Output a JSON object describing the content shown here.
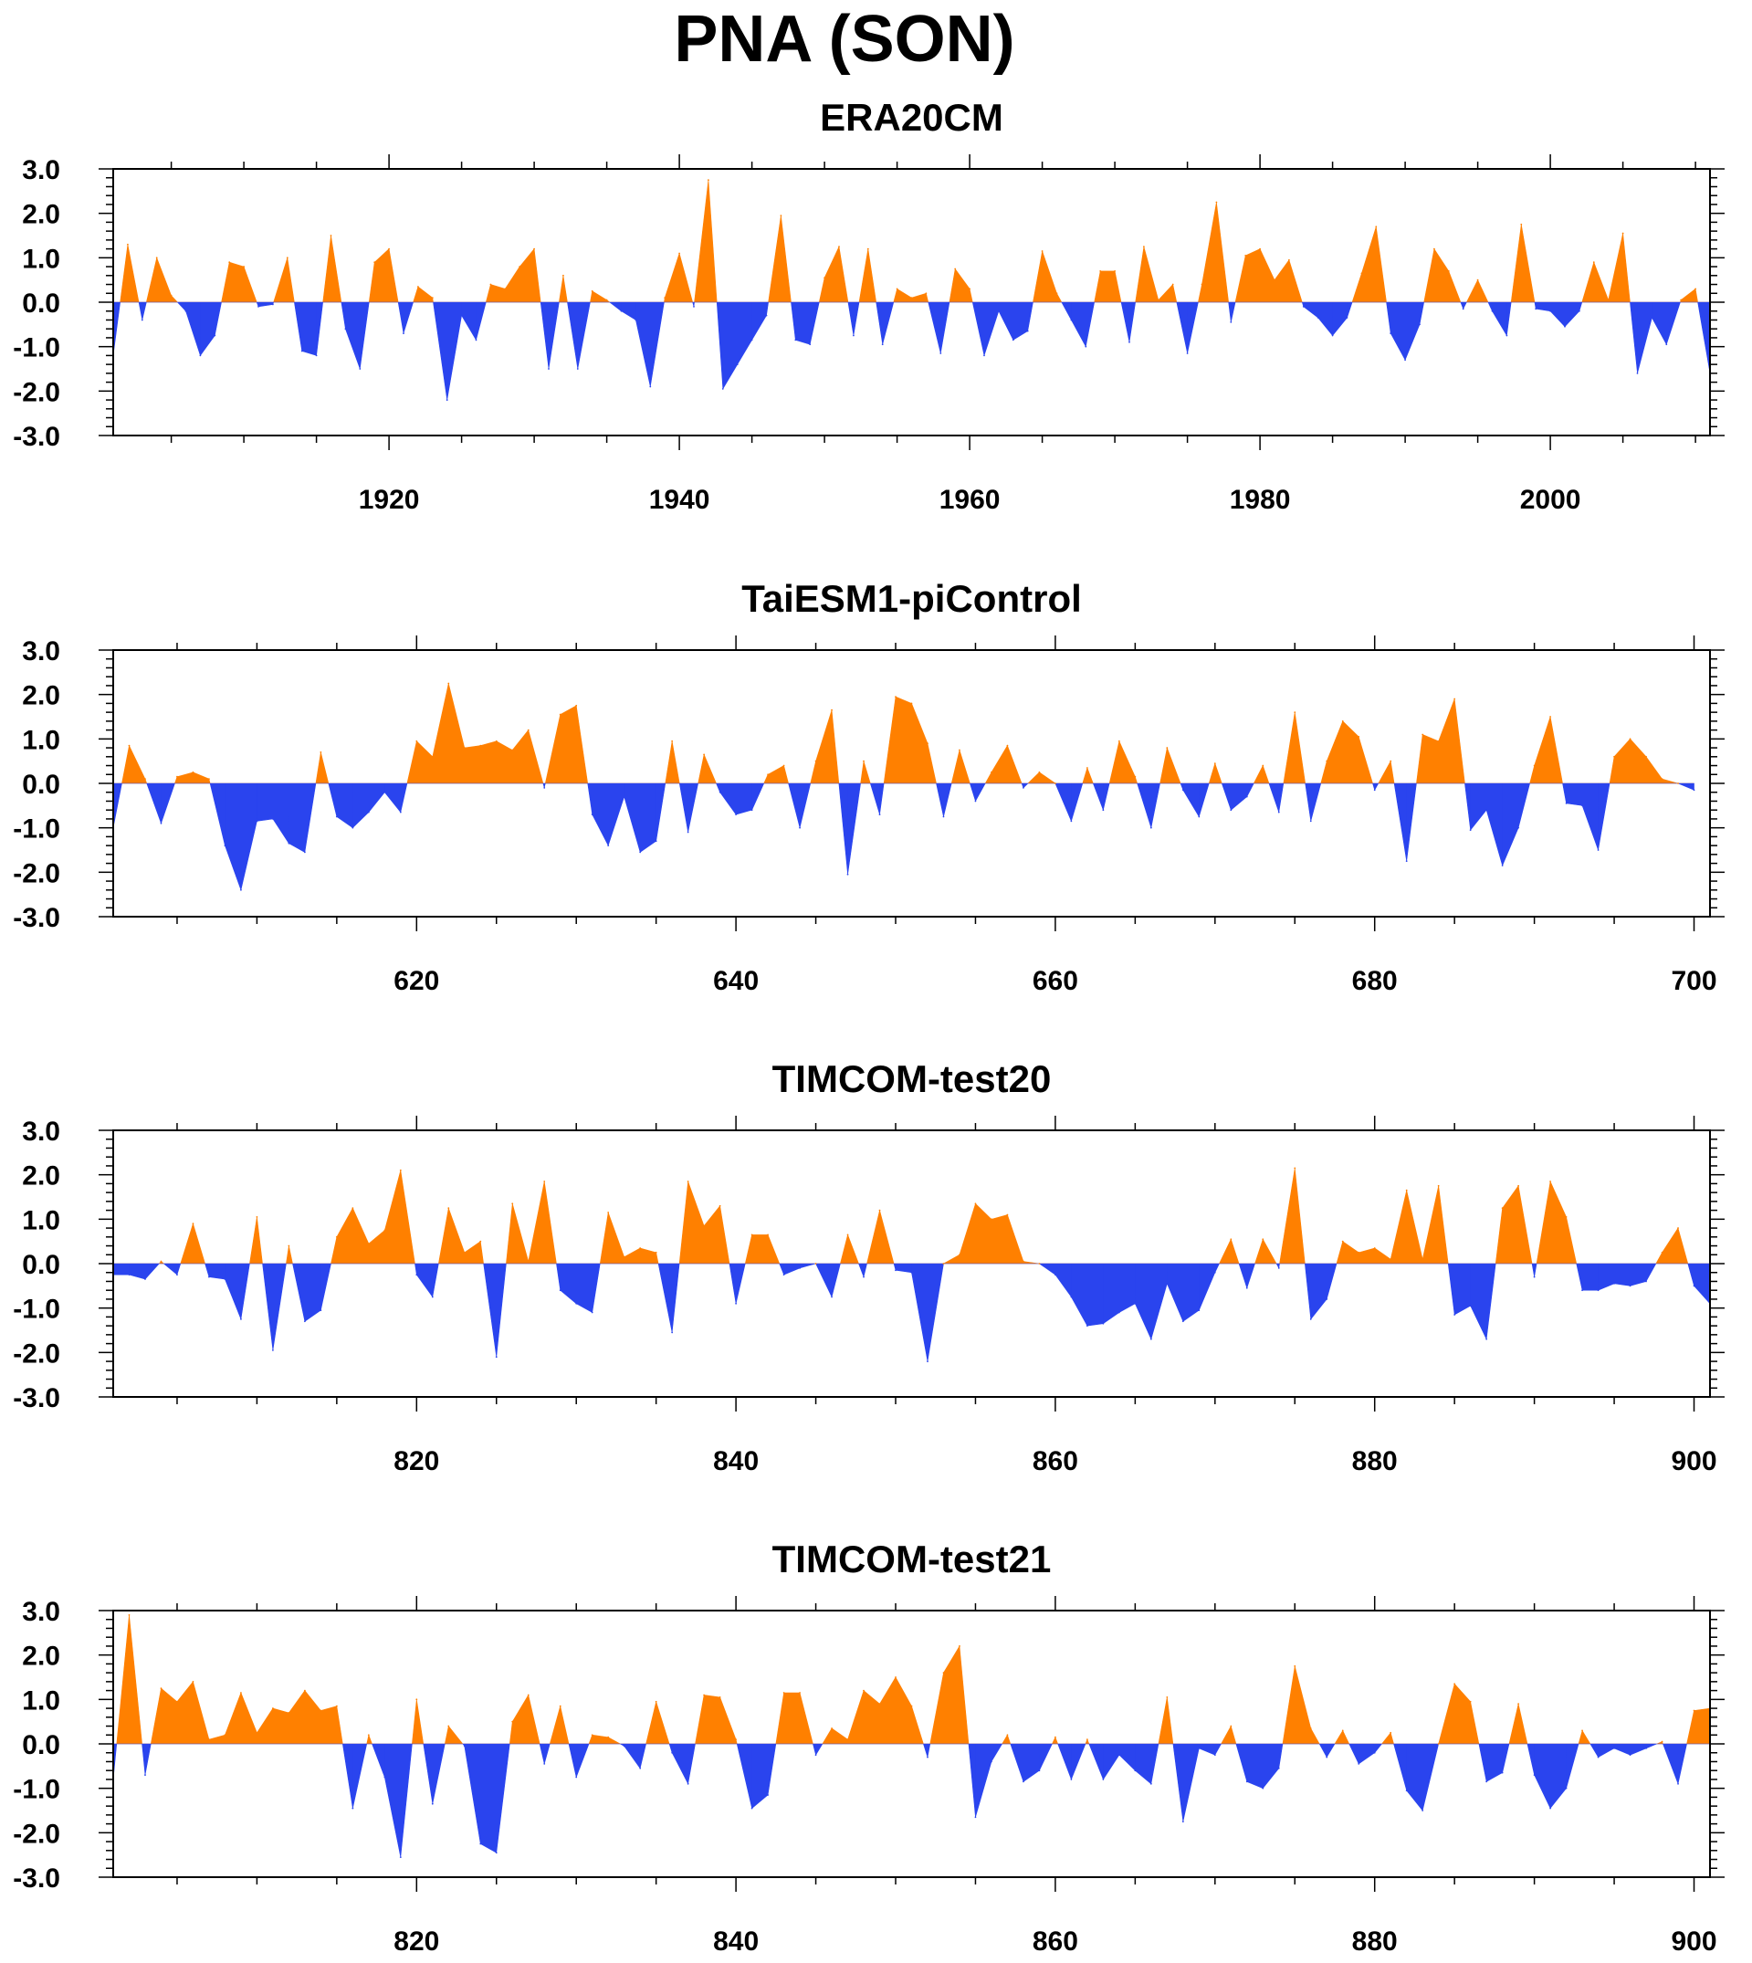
{
  "title": "PNA (SON)",
  "colors": {
    "positive": "#ff8000",
    "negative": "#2a44ee",
    "axis": "#000000"
  },
  "chart_data": [
    {
      "type": "area",
      "title": "ERA20CM",
      "x_start": 1901,
      "xlim": [
        1901,
        2011
      ],
      "ylim": [
        -3,
        3
      ],
      "y_ticks": [
        "3.0",
        "2.0",
        "1.0",
        "0.0",
        "-1.0",
        "-2.0",
        "-3.0"
      ],
      "x_ticks": [
        "1920",
        "1940",
        "1960",
        "1980",
        "2000"
      ],
      "values": [
        -1.2,
        1.3,
        -0.4,
        1.0,
        0.15,
        -0.2,
        -1.2,
        -0.75,
        0.9,
        0.8,
        -0.1,
        -0.05,
        1.0,
        -1.1,
        -1.2,
        1.5,
        -0.6,
        -1.5,
        0.9,
        1.2,
        -0.7,
        0.35,
        0.1,
        -2.2,
        -0.3,
        -0.85,
        0.4,
        0.3,
        0.8,
        1.2,
        -1.5,
        0.6,
        -1.5,
        0.25,
        0.05,
        -0.2,
        -0.4,
        -1.9,
        0.1,
        1.1,
        -0.1,
        2.75,
        -1.95,
        -1.4,
        -0.85,
        -0.3,
        1.95,
        -0.85,
        -0.95,
        0.55,
        1.25,
        -0.75,
        1.2,
        -0.95,
        0.3,
        0.1,
        0.2,
        -1.15,
        0.75,
        0.3,
        -1.2,
        -0.2,
        -0.85,
        -0.65,
        1.15,
        0.2,
        -0.4,
        -1.0,
        0.7,
        0.7,
        -0.9,
        1.25,
        0.05,
        0.4,
        -1.15,
        0.4,
        2.25,
        -0.45,
        1.05,
        1.2,
        0.5,
        0.95,
        -0.1,
        -0.35,
        -0.75,
        -0.35,
        0.65,
        1.7,
        -0.7,
        -1.3,
        -0.5,
        1.2,
        0.7,
        -0.15,
        0.5,
        -0.2,
        -0.75,
        1.75,
        -0.15,
        -0.2,
        -0.55,
        -0.2,
        0.9,
        0.05,
        1.55,
        -1.6,
        -0.35,
        -0.95,
        0.05,
        0.3,
        -1.6
      ]
    },
    {
      "type": "area",
      "title": "TaiESM1-piControl",
      "x_start": 601,
      "xlim": [
        601,
        701
      ],
      "ylim": [
        -3,
        3
      ],
      "y_ticks": [
        "3.0",
        "2.0",
        "1.0",
        "0.0",
        "-1.0",
        "-2.0",
        "-3.0"
      ],
      "x_ticks": [
        "620",
        "640",
        "660",
        "680",
        "700"
      ],
      "values": [
        -1.0,
        0.85,
        0.1,
        -0.9,
        0.15,
        0.25,
        0.1,
        -1.4,
        -2.4,
        -0.85,
        -0.8,
        -1.35,
        -1.55,
        0.7,
        -0.75,
        -1.0,
        -0.65,
        -0.2,
        -0.65,
        0.95,
        0.6,
        2.25,
        0.8,
        0.85,
        0.95,
        0.75,
        1.2,
        -0.1,
        1.55,
        1.75,
        -0.7,
        -1.4,
        -0.3,
        -1.55,
        -1.3,
        0.95,
        -1.1,
        0.65,
        -0.2,
        -0.7,
        -0.6,
        0.2,
        0.4,
        -1.0,
        0.5,
        1.65,
        -2.05,
        0.5,
        -0.7,
        1.95,
        1.8,
        0.9,
        -0.75,
        0.75,
        -0.4,
        0.25,
        0.85,
        -0.1,
        0.25,
        0.0,
        -0.85,
        0.35,
        -0.6,
        0.95,
        0.15,
        -1.0,
        0.8,
        -0.15,
        -0.75,
        0.45,
        -0.6,
        -0.3,
        0.4,
        -0.65,
        1.6,
        -0.85,
        0.5,
        1.4,
        1.05,
        -0.15,
        0.5,
        -1.75,
        1.1,
        0.95,
        1.9,
        -1.05,
        -0.6,
        -1.85,
        -1.0,
        0.4,
        1.5,
        -0.45,
        -0.5,
        -1.5,
        0.6,
        1.0,
        0.6,
        0.1,
        0.0,
        -0.15
      ]
    },
    {
      "type": "area",
      "title": "TIMCOM-test20",
      "x_start": 801,
      "xlim": [
        801,
        901
      ],
      "ylim": [
        -3,
        3
      ],
      "y_ticks": [
        "3.0",
        "2.0",
        "1.0",
        "0.0",
        "-1.0",
        "-2.0",
        "-3.0"
      ],
      "x_ticks": [
        "820",
        "840",
        "860",
        "880",
        "900"
      ],
      "values": [
        -0.25,
        -0.25,
        -0.35,
        0.05,
        -0.25,
        0.9,
        -0.3,
        -0.35,
        -1.25,
        1.05,
        -1.95,
        0.4,
        -1.3,
        -1.05,
        0.6,
        1.25,
        0.45,
        0.75,
        2.1,
        -0.25,
        -0.75,
        1.25,
        0.25,
        0.5,
        -2.1,
        1.35,
        0.05,
        1.85,
        -0.6,
        -0.9,
        -1.1,
        1.15,
        0.15,
        0.35,
        0.25,
        -1.55,
        1.85,
        0.85,
        1.3,
        -0.9,
        0.65,
        0.65,
        -0.25,
        -0.1,
        0.0,
        -0.75,
        0.65,
        -0.3,
        1.2,
        -0.15,
        -0.2,
        -2.2,
        0.0,
        0.2,
        1.35,
        1.0,
        1.1,
        0.05,
        0.0,
        -0.25,
        -0.75,
        -1.4,
        -1.35,
        -1.1,
        -0.9,
        -1.7,
        -0.45,
        -1.3,
        -1.05,
        -0.2,
        0.55,
        -0.55,
        0.55,
        -0.1,
        2.15,
        -1.25,
        -0.8,
        0.5,
        0.25,
        0.35,
        0.1,
        1.65,
        0.1,
        1.75,
        -1.15,
        -0.95,
        -1.7,
        1.25,
        1.75,
        -0.3,
        1.85,
        1.05,
        -0.6,
        -0.6,
        -0.45,
        -0.5,
        -0.4,
        0.25,
        0.8,
        -0.5,
        -0.9
      ]
    },
    {
      "type": "area",
      "title": "TIMCOM-test21",
      "x_start": 801,
      "xlim": [
        801,
        901
      ],
      "ylim": [
        -3,
        3
      ],
      "y_ticks": [
        "3.0",
        "2.0",
        "1.0",
        "0.0",
        "-1.0",
        "-2.0",
        "-3.0"
      ],
      "x_ticks": [
        "820",
        "840",
        "860",
        "880",
        "900"
      ],
      "values": [
        -0.8,
        2.9,
        -0.7,
        1.25,
        0.95,
        1.4,
        0.1,
        0.2,
        1.15,
        0.25,
        0.8,
        0.7,
        1.2,
        0.75,
        0.85,
        -1.45,
        0.2,
        -0.75,
        -2.55,
        1.0,
        -1.35,
        0.4,
        -0.05,
        -2.25,
        -2.45,
        0.5,
        1.1,
        -0.45,
        0.85,
        -0.75,
        0.2,
        0.15,
        -0.05,
        -0.55,
        0.95,
        -0.2,
        -0.9,
        1.1,
        1.05,
        0.1,
        -1.45,
        -1.15,
        1.15,
        1.15,
        -0.25,
        0.35,
        0.1,
        1.2,
        0.9,
        1.5,
        0.85,
        -0.3,
        1.6,
        2.2,
        -1.65,
        -0.4,
        0.2,
        -0.85,
        -0.6,
        0.15,
        -0.8,
        0.1,
        -0.8,
        -0.25,
        -0.6,
        -0.9,
        1.05,
        -1.75,
        -0.1,
        -0.25,
        0.4,
        -0.85,
        -1.0,
        -0.55,
        1.75,
        0.35,
        -0.3,
        0.3,
        -0.45,
        -0.2,
        0.25,
        -1.05,
        -1.5,
        0.0,
        1.35,
        0.95,
        -0.85,
        -0.65,
        0.9,
        -0.7,
        -1.45,
        -1.0,
        0.3,
        -0.3,
        -0.1,
        -0.25,
        -0.1,
        0.05,
        -0.9,
        0.75,
        0.8
      ]
    }
  ]
}
